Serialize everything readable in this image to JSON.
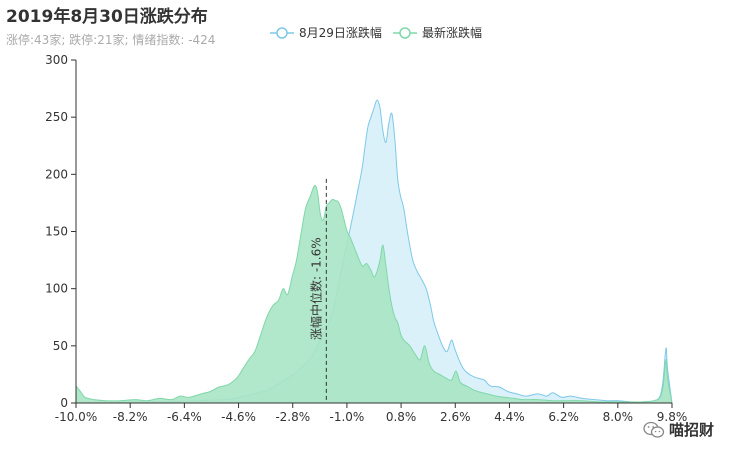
{
  "title": "2019年8月30日涨跌分布",
  "subtitle": "涨停:43家; 跌停:21家; 情绪指数: -424",
  "watermark": "喵招财",
  "colors": {
    "prev_stroke": "#7ec8e8",
    "prev_fill": "#d6effa",
    "latest_stroke": "#7fd8a8",
    "latest_fill": "#a8e4c4"
  },
  "chart_data": {
    "type": "area",
    "ylim": [
      0,
      300
    ],
    "yticks": [
      0,
      50,
      100,
      150,
      200,
      250,
      300
    ],
    "xlim": [
      -10.0,
      10.0
    ],
    "xticks": [
      "-10.0%",
      "-8.2%",
      "-6.4%",
      "-4.6%",
      "-2.8%",
      "-1.0%",
      "0.8%",
      "2.6%",
      "4.4%",
      "6.2%",
      "8.0%",
      "9.8%"
    ],
    "legend": [
      "8月29日涨跌幅",
      "最新涨跌幅"
    ],
    "legend_position": "top-center",
    "median": {
      "x": -1.6,
      "label": "涨幅中位数: -1.6%"
    },
    "series": [
      {
        "name": "8月29日涨跌幅",
        "points": [
          [
            -10.0,
            0
          ],
          [
            -9.0,
            0
          ],
          [
            -8.0,
            1
          ],
          [
            -7.0,
            1
          ],
          [
            -6.0,
            2
          ],
          [
            -5.0,
            3
          ],
          [
            -4.5,
            5
          ],
          [
            -4.0,
            8
          ],
          [
            -3.5,
            12
          ],
          [
            -3.0,
            20
          ],
          [
            -2.7,
            25
          ],
          [
            -2.4,
            32
          ],
          [
            -2.1,
            40
          ],
          [
            -1.8,
            55
          ],
          [
            -1.5,
            70
          ],
          [
            -1.3,
            90
          ],
          [
            -1.1,
            115
          ],
          [
            -0.9,
            140
          ],
          [
            -0.7,
            165
          ],
          [
            -0.55,
            185
          ],
          [
            -0.4,
            205
          ],
          [
            -0.3,
            225
          ],
          [
            -0.2,
            242
          ],
          [
            -0.1,
            250
          ],
          [
            0.0,
            258
          ],
          [
            0.1,
            265
          ],
          [
            0.2,
            258
          ],
          [
            0.3,
            238
          ],
          [
            0.4,
            228
          ],
          [
            0.5,
            245
          ],
          [
            0.6,
            253
          ],
          [
            0.7,
            230
          ],
          [
            0.8,
            195
          ],
          [
            0.9,
            180
          ],
          [
            1.0,
            170
          ],
          [
            1.15,
            145
          ],
          [
            1.3,
            125
          ],
          [
            1.45,
            115
          ],
          [
            1.6,
            108
          ],
          [
            1.75,
            100
          ],
          [
            1.9,
            85
          ],
          [
            2.0,
            72
          ],
          [
            2.15,
            60
          ],
          [
            2.3,
            50
          ],
          [
            2.45,
            45
          ],
          [
            2.6,
            55
          ],
          [
            2.7,
            48
          ],
          [
            2.85,
            38
          ],
          [
            3.0,
            30
          ],
          [
            3.2,
            25
          ],
          [
            3.45,
            22
          ],
          [
            3.7,
            20
          ],
          [
            3.9,
            15
          ],
          [
            4.2,
            14
          ],
          [
            4.5,
            10
          ],
          [
            4.8,
            8
          ],
          [
            5.1,
            6
          ],
          [
            5.5,
            8
          ],
          [
            5.8,
            6
          ],
          [
            6.0,
            9
          ],
          [
            6.3,
            5
          ],
          [
            6.6,
            6
          ],
          [
            7.0,
            4
          ],
          [
            7.4,
            3
          ],
          [
            7.8,
            2
          ],
          [
            8.2,
            2
          ],
          [
            8.6,
            1
          ],
          [
            9.0,
            1
          ],
          [
            9.4,
            2
          ],
          [
            9.6,
            6
          ],
          [
            9.7,
            20
          ],
          [
            9.8,
            48
          ],
          [
            9.85,
            30
          ],
          [
            10.0,
            0
          ]
        ]
      },
      {
        "name": "最新涨跌幅",
        "points": [
          [
            -10.0,
            15
          ],
          [
            -9.85,
            10
          ],
          [
            -9.7,
            5
          ],
          [
            -9.4,
            3
          ],
          [
            -9.0,
            2
          ],
          [
            -8.5,
            2
          ],
          [
            -8.0,
            3
          ],
          [
            -7.6,
            2
          ],
          [
            -7.2,
            4
          ],
          [
            -6.8,
            3
          ],
          [
            -6.5,
            6
          ],
          [
            -6.2,
            5
          ],
          [
            -5.8,
            8
          ],
          [
            -5.5,
            10
          ],
          [
            -5.2,
            14
          ],
          [
            -4.9,
            16
          ],
          [
            -4.6,
            22
          ],
          [
            -4.4,
            30
          ],
          [
            -4.2,
            38
          ],
          [
            -4.0,
            45
          ],
          [
            -3.8,
            60
          ],
          [
            -3.6,
            75
          ],
          [
            -3.4,
            85
          ],
          [
            -3.2,
            90
          ],
          [
            -3.05,
            100
          ],
          [
            -2.9,
            95
          ],
          [
            -2.75,
            110
          ],
          [
            -2.6,
            125
          ],
          [
            -2.45,
            148
          ],
          [
            -2.3,
            170
          ],
          [
            -2.15,
            180
          ],
          [
            -2.0,
            190
          ],
          [
            -1.9,
            185
          ],
          [
            -1.8,
            165
          ],
          [
            -1.7,
            160
          ],
          [
            -1.6,
            172
          ],
          [
            -1.5,
            175
          ],
          [
            -1.4,
            178
          ],
          [
            -1.3,
            177
          ],
          [
            -1.2,
            176
          ],
          [
            -1.1,
            170
          ],
          [
            -1.0,
            160
          ],
          [
            -0.9,
            150
          ],
          [
            -0.8,
            145
          ],
          [
            -0.6,
            132
          ],
          [
            -0.4,
            120
          ],
          [
            -0.25,
            122
          ],
          [
            -0.1,
            116
          ],
          [
            0.0,
            110
          ],
          [
            0.1,
            115
          ],
          [
            0.2,
            125
          ],
          [
            0.3,
            138
          ],
          [
            0.4,
            120
          ],
          [
            0.5,
            100
          ],
          [
            0.6,
            85
          ],
          [
            0.7,
            75
          ],
          [
            0.8,
            70
          ],
          [
            0.9,
            60
          ],
          [
            1.0,
            55
          ],
          [
            1.2,
            50
          ],
          [
            1.4,
            42
          ],
          [
            1.55,
            38
          ],
          [
            1.7,
            50
          ],
          [
            1.85,
            35
          ],
          [
            2.0,
            28
          ],
          [
            2.2,
            25
          ],
          [
            2.4,
            22
          ],
          [
            2.6,
            20
          ],
          [
            2.75,
            28
          ],
          [
            2.9,
            18
          ],
          [
            3.1,
            15
          ],
          [
            3.3,
            12
          ],
          [
            3.5,
            10
          ],
          [
            3.8,
            8
          ],
          [
            4.1,
            6
          ],
          [
            4.4,
            5
          ],
          [
            4.7,
            4
          ],
          [
            5.0,
            3
          ],
          [
            5.5,
            3
          ],
          [
            6.0,
            2
          ],
          [
            6.5,
            2
          ],
          [
            7.0,
            2
          ],
          [
            7.5,
            1
          ],
          [
            8.0,
            1
          ],
          [
            8.5,
            1
          ],
          [
            9.0,
            1
          ],
          [
            9.4,
            2
          ],
          [
            9.6,
            5
          ],
          [
            9.7,
            15
          ],
          [
            9.8,
            38
          ],
          [
            9.85,
            22
          ],
          [
            10.0,
            0
          ]
        ]
      }
    ]
  }
}
